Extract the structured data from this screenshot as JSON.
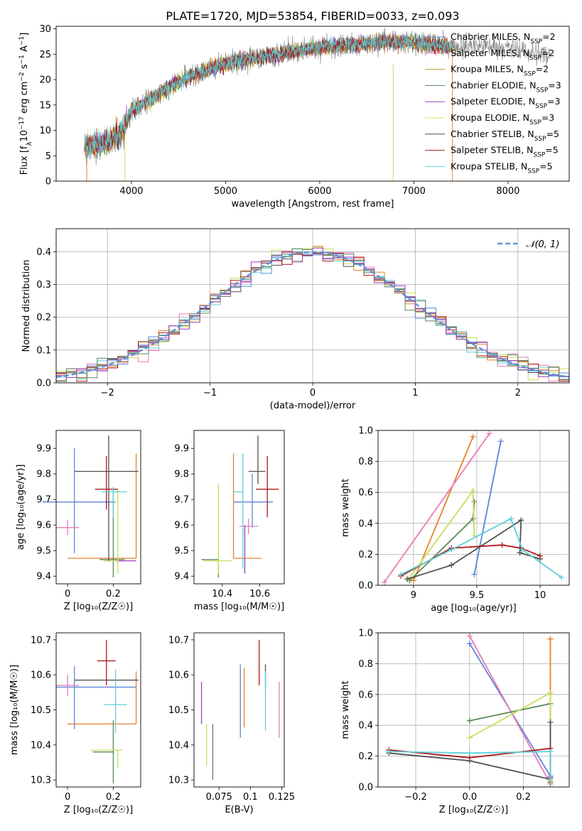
{
  "title": "PLATE=1720, MJD=53854, FIBERID=0033, z=0.093",
  "colors": {
    "series": [
      "#5b86d6",
      "#e8812a",
      "#c49a2e",
      "#5a8a5a",
      "#9a3fc0",
      "#c8dc5a",
      "#505050",
      "#b01818",
      "#5fd0d8"
    ],
    "hist": [
      "#5b86d6",
      "#e8812a",
      "#e87ab5",
      "#c8dc5a",
      "#505050",
      "#b01818",
      "#5fd0d8",
      "#5a8a5a",
      "#9a3fc0"
    ]
  },
  "chart_data": [
    {
      "id": "spectrum",
      "type": "line",
      "title": "PLATE=1720, MJD=53854, FIBERID=0033, z=0.093",
      "xlabel": "wavelength [Angstrom, rest frame]",
      "ylabel": "Flux [f_λ10^{-17} erg cm^{-2} s^{-1} A^{-1}]",
      "xlim": [
        3200,
        8650
      ],
      "ylim": [
        0,
        30.5
      ],
      "xticks": [
        4000,
        5000,
        6000,
        7000,
        8000
      ],
      "yticks": [
        0,
        5,
        10,
        15,
        20,
        25,
        30
      ],
      "legend_position": "top-right",
      "legend": [
        {
          "label": "Chabrier MILES, N",
          "sub": "SSP",
          "tail": "=2",
          "color": "#5b86d6"
        },
        {
          "label": "Salpeter MILES, N",
          "sub": "SSP",
          "tail": "=2",
          "color": "#e87ab5"
        },
        {
          "label": "Kroupa MILES, N",
          "sub": "SSP",
          "tail": "=2",
          "color": "#c49a2e"
        },
        {
          "label": "Chabrier ELODIE, N",
          "sub": "SSP",
          "tail": "=3",
          "color": "#5a8a5a"
        },
        {
          "label": "Salpeter ELODIE, N",
          "sub": "SSP",
          "tail": "=3",
          "color": "#9a3fc0"
        },
        {
          "label": "Kroupa ELODIE, N",
          "sub": "SSP",
          "tail": "=3",
          "color": "#e0e060"
        },
        {
          "label": "Chabrier STELIB, N",
          "sub": "SSP",
          "tail": "=5",
          "color": "#505050"
        },
        {
          "label": "Salpeter STELIB, N",
          "sub": "SSP",
          "tail": "=5",
          "color": "#b01818"
        },
        {
          "label": "Kroupa STELIB, N",
          "sub": "SSP",
          "tail": "=5",
          "color": "#5fd0d8"
        }
      ],
      "trend": [
        [
          3500,
          6.5
        ],
        [
          3700,
          7.5
        ],
        [
          3900,
          9.5
        ],
        [
          4000,
          14
        ],
        [
          4200,
          16
        ],
        [
          4400,
          18.5
        ],
        [
          4600,
          20.5
        ],
        [
          4800,
          22
        ],
        [
          5000,
          23
        ],
        [
          5200,
          24
        ],
        [
          5400,
          24.5
        ],
        [
          5600,
          25.2
        ],
        [
          5800,
          25.8
        ],
        [
          6000,
          26.3
        ],
        [
          6200,
          26.8
        ],
        [
          6400,
          27
        ],
        [
          6600,
          27.3
        ],
        [
          6800,
          27.5
        ],
        [
          7000,
          27.3
        ],
        [
          7200,
          27
        ],
        [
          7400,
          26.5
        ],
        [
          7600,
          26.8
        ],
        [
          7800,
          26.5
        ],
        [
          8000,
          26.2
        ],
        [
          8200,
          25.5
        ],
        [
          8400,
          25
        ]
      ]
    },
    {
      "id": "residual_hist",
      "type": "line",
      "xlabel": "(data-model)/error",
      "ylabel": "Normed distribution",
      "xlim": [
        -2.5,
        2.5
      ],
      "ylim": [
        0,
        0.47
      ],
      "xticks": [
        -2,
        -1,
        0,
        1,
        2
      ],
      "xtick_labels": [
        "−2",
        "−1",
        "0",
        "1",
        "2"
      ],
      "yticks": [
        0.0,
        0.1,
        0.2,
        0.3,
        0.4
      ],
      "legend": "𝒩(0, 1)",
      "legend_position": "top-right",
      "grid": true,
      "bin_width": 0.1
    },
    {
      "id": "age_vs_Z",
      "type": "scatter",
      "xlabel": "Z [log₁₀(Z/Z☉)]",
      "ylabel": "age  [log₁₀(age/yr)]",
      "xlim": [
        -0.05,
        0.32
      ],
      "ylim": [
        9.37,
        9.97
      ],
      "xticks": [
        0.0,
        0.2
      ],
      "yticks": [
        9.4,
        9.5,
        9.6,
        9.7,
        9.8,
        9.9
      ],
      "points": [
        {
          "x": 0.03,
          "y": 9.69,
          "xerr": [
            0.14,
            0.18
          ],
          "yerr": [
            0.2,
            0.21
          ],
          "color": "#5b86d6"
        },
        {
          "x": 0.3,
          "y": 9.47,
          "xerr": [
            0.3,
            0.0
          ],
          "yerr": [
            0.0,
            0.41
          ],
          "color": "#e8812a"
        },
        {
          "x": 0.0,
          "y": 9.59,
          "xerr": [
            0.05,
            0.05
          ],
          "yerr": [
            0.03,
            0.03
          ],
          "color": "#e87ab5"
        },
        {
          "x": 0.2,
          "y": 9.465,
          "xerr": [
            0.06,
            0.05
          ],
          "yerr": [
            0.07,
            0.27
          ],
          "color": "#5a8a5a"
        },
        {
          "x": 0.28,
          "y": 9.46,
          "xerr": [
            0.07,
            0.02
          ],
          "yerr": [
            0.0,
            0.0
          ],
          "color": "#9a3fc0"
        },
        {
          "x": 0.22,
          "y": 9.46,
          "xerr": [
            0.06,
            0.0
          ],
          "yerr": [
            0.05,
            0.28
          ],
          "color": "#c8dc5a"
        },
        {
          "x": 0.18,
          "y": 9.81,
          "xerr": [
            0.15,
            0.13
          ],
          "yerr": [
            0.35,
            0.14
          ],
          "color": "#505050"
        },
        {
          "x": 0.17,
          "y": 9.74,
          "xerr": [
            0.05,
            0.05
          ],
          "yerr": [
            0.08,
            0.13
          ],
          "color": "#b01818"
        },
        {
          "x": 0.2,
          "y": 9.73,
          "xerr": [
            0.05,
            0.06
          ],
          "yerr": [
            0.1,
            0.02
          ],
          "color": "#5fd0d8"
        }
      ]
    },
    {
      "id": "age_vs_mass",
      "type": "scatter",
      "xlabel": "mass [log₁₀(M/M☉)]",
      "ylabel": "",
      "xlim": [
        10.25,
        10.73
      ],
      "ylim": [
        9.37,
        9.97
      ],
      "xticks": [
        10.4,
        10.6
      ],
      "yticks": [
        9.4,
        9.5,
        9.6,
        9.7,
        9.8,
        9.9
      ],
      "points": [
        {
          "x": 10.56,
          "y": 9.69,
          "xerr": [
            0.1,
            0.11
          ],
          "yerr": [
            0.1,
            0.11
          ],
          "color": "#5b86d6"
        },
        {
          "x": 10.46,
          "y": 9.47,
          "xerr": [
            0.0,
            0.15
          ],
          "yerr": [
            0.0,
            0.41
          ],
          "color": "#e8812a"
        },
        {
          "x": 10.54,
          "y": 9.595,
          "xerr": [
            0.05,
            0.05
          ],
          "yerr": [
            0.03,
            0.03
          ],
          "color": "#e87ab5"
        },
        {
          "x": 10.38,
          "y": 9.465,
          "xerr": [
            0.09,
            0.0
          ],
          "yerr": [
            0.07,
            0.0
          ],
          "color": "#5a8a5a"
        },
        {
          "x": 10.52,
          "y": 9.46,
          "xerr": [
            0.0,
            0.0
          ],
          "yerr": [
            0.05,
            0.14
          ],
          "color": "#9a3fc0"
        },
        {
          "x": 10.38,
          "y": 9.46,
          "xerr": [
            0.08,
            0.07
          ],
          "yerr": [
            0.05,
            0.3
          ],
          "color": "#c8dc5a"
        },
        {
          "x": 10.59,
          "y": 9.81,
          "xerr": [
            0.05,
            0.04
          ],
          "yerr": [
            0.05,
            0.14
          ],
          "color": "#505050"
        },
        {
          "x": 10.64,
          "y": 9.74,
          "xerr": [
            0.06,
            0.06
          ],
          "yerr": [
            0.11,
            0.13
          ],
          "color": "#b01818"
        },
        {
          "x": 10.51,
          "y": 9.73,
          "xerr": [
            0.05,
            0.0
          ],
          "yerr": [
            0.3,
            0.15
          ],
          "color": "#5fd0d8"
        }
      ]
    },
    {
      "id": "massweight_vs_age",
      "type": "line",
      "xlabel": "age  [log₁₀(age/yr)]",
      "ylabel": "mass weight",
      "xlim": [
        8.72,
        10.23
      ],
      "ylim": [
        0,
        1.0
      ],
      "xticks": [
        9.0,
        9.5,
        10.0
      ],
      "yticks": [
        0.0,
        0.2,
        0.4,
        0.6,
        0.8,
        1.0
      ],
      "grid": true,
      "series": [
        {
          "color": "#5b86d6",
          "points": [
            [
              9.48,
              0.07
            ],
            [
              9.69,
              0.93
            ]
          ]
        },
        {
          "color": "#e8812a",
          "points": [
            [
              9.0,
              0.03
            ],
            [
              9.47,
              0.96
            ]
          ]
        },
        {
          "color": "#e87ab5",
          "points": [
            [
              8.77,
              0.02
            ],
            [
              9.6,
              0.98
            ]
          ]
        },
        {
          "color": "#5a8a5a",
          "points": [
            [
              8.97,
              0.03
            ],
            [
              9.47,
              0.43
            ],
            [
              9.48,
              0.54
            ]
          ]
        },
        {
          "color": "#c8dc5a",
          "points": [
            [
              8.96,
              0.04
            ],
            [
              9.47,
              0.61
            ],
            [
              9.48,
              0.32
            ]
          ]
        },
        {
          "color": "#505050",
          "points": [
            [
              8.95,
              0.04
            ],
            [
              9.3,
              0.13
            ],
            [
              9.85,
              0.42
            ],
            [
              9.84,
              0.21
            ],
            [
              10.0,
              0.17
            ]
          ]
        },
        {
          "color": "#b01818",
          "points": [
            [
              8.9,
              0.06
            ],
            [
              9.3,
              0.24
            ],
            [
              9.7,
              0.26
            ],
            [
              9.85,
              0.24
            ],
            [
              10.0,
              0.19
            ]
          ]
        },
        {
          "color": "#5fd0d8",
          "points": [
            [
              8.9,
              0.07
            ],
            [
              9.3,
              0.23
            ],
            [
              9.77,
              0.43
            ],
            [
              9.86,
              0.23
            ],
            [
              10.17,
              0.05
            ]
          ]
        }
      ]
    },
    {
      "id": "mass_vs_Z",
      "type": "scatter",
      "xlabel": "Z [log₁₀(Z/Z☉)]",
      "ylabel": "mass [log₁₀(M/M☉)]",
      "xlim": [
        -0.05,
        0.32
      ],
      "ylim": [
        10.28,
        10.72
      ],
      "xticks": [
        0.0,
        0.2
      ],
      "yticks": [
        10.3,
        10.4,
        10.5,
        10.6,
        10.7
      ],
      "points": [
        {
          "x": 0.03,
          "y": 10.565,
          "xerr": [
            0.08,
            0.27
          ],
          "yerr": [
            0.12,
            0.06
          ],
          "color": "#5b86d6"
        },
        {
          "x": 0.3,
          "y": 10.46,
          "xerr": [
            0.3,
            0.0
          ],
          "yerr": [
            0.0,
            0.15
          ],
          "color": "#e8812a"
        },
        {
          "x": 0.0,
          "y": 10.57,
          "xerr": [
            0.05,
            0.05
          ],
          "yerr": [
            0.03,
            0.03
          ],
          "color": "#e87ab5"
        },
        {
          "x": 0.2,
          "y": 10.38,
          "xerr": [
            0.09,
            0.0
          ],
          "yerr": [
            0.09,
            0.09
          ],
          "color": "#5a8a5a"
        },
        {
          "x": 0.25,
          "y": 10.515,
          "xerr": [
            0.0,
            0.0
          ],
          "yerr": [
            0.0,
            0.0
          ],
          "color": "#9a3fc0"
        },
        {
          "x": 0.22,
          "y": 10.385,
          "xerr": [
            0.12,
            0.02
          ],
          "yerr": [
            0.05,
            0.0
          ],
          "color": "#c8dc5a"
        },
        {
          "x": 0.18,
          "y": 10.585,
          "xerr": [
            0.15,
            0.13
          ],
          "yerr": [
            0.0,
            0.0
          ],
          "color": "#505050"
        },
        {
          "x": 0.17,
          "y": 10.64,
          "xerr": [
            0.04,
            0.04
          ],
          "yerr": [
            0.07,
            0.06
          ],
          "color": "#b01818"
        },
        {
          "x": 0.21,
          "y": 10.515,
          "xerr": [
            0.05,
            0.05
          ],
          "yerr": [
            0.08,
            0.1
          ],
          "color": "#5fd0d8"
        }
      ]
    },
    {
      "id": "mass_vs_ebv",
      "type": "scatter",
      "xlabel": "E(B-V)",
      "ylabel": "",
      "xlim": [
        0.055,
        0.127
      ],
      "ylim": [
        10.28,
        10.72
      ],
      "xticks": [
        0.075,
        0.1,
        0.125
      ],
      "yticks": [
        10.3,
        10.4,
        10.5,
        10.6,
        10.7
      ],
      "points": [
        {
          "x": 0.092,
          "y": 10.53,
          "yerr": [
            0.11,
            0.1
          ],
          "color": "#5b86d6"
        },
        {
          "x": 0.095,
          "y": 10.53,
          "yerr": [
            0.08,
            0.09
          ],
          "color": "#e8812a"
        },
        {
          "x": 0.123,
          "y": 10.5,
          "yerr": [
            0.08,
            0.08
          ],
          "color": "#e87ab5"
        },
        {
          "x": 0.07,
          "y": 10.38,
          "yerr": [
            0.08,
            0.08
          ],
          "color": "#5a8a5a"
        },
        {
          "x": 0.061,
          "y": 10.5,
          "yerr": [
            0.04,
            0.08
          ],
          "color": "#9a3fc0"
        },
        {
          "x": 0.065,
          "y": 10.4,
          "yerr": [
            0.06,
            0.06
          ],
          "color": "#c8dc5a"
        },
        {
          "x": 0.112,
          "y": 10.58,
          "yerr": [
            0.02,
            0.05
          ],
          "color": "#505050"
        },
        {
          "x": 0.107,
          "y": 10.64,
          "yerr": [
            0.07,
            0.06
          ],
          "color": "#b01818"
        },
        {
          "x": 0.112,
          "y": 10.51,
          "yerr": [
            0.07,
            0.1
          ],
          "color": "#5fd0d8"
        }
      ]
    },
    {
      "id": "massweight_vs_Z",
      "type": "line",
      "xlabel": "Z [log₁₀(Z/Z☉)]",
      "ylabel": "mass weight",
      "xlim": [
        -0.34,
        0.37
      ],
      "ylim": [
        0,
        1.0
      ],
      "xticks": [
        -0.2,
        0.0,
        0.2
      ],
      "xtick_labels": [
        "−0.2",
        "0.0",
        "0.2"
      ],
      "yticks": [
        0.0,
        0.2,
        0.4,
        0.6,
        0.8,
        1.0
      ],
      "grid": true,
      "series": [
        {
          "color": "#5b86d6",
          "points": [
            [
              0.0,
              0.93
            ],
            [
              0.3,
              0.07
            ]
          ]
        },
        {
          "color": "#e8812a",
          "points": [
            [
              0.3,
              0.03
            ],
            [
              0.3,
              0.96
            ]
          ]
        },
        {
          "color": "#e87ab5",
          "points": [
            [
              0.0,
              0.98
            ],
            [
              0.3,
              0.02
            ]
          ]
        },
        {
          "color": "#5a8a5a",
          "points": [
            [
              0.0,
              0.43
            ],
            [
              0.3,
              0.54
            ],
            [
              0.3,
              0.03
            ]
          ]
        },
        {
          "color": "#c8dc5a",
          "points": [
            [
              0.0,
              0.32
            ],
            [
              0.3,
              0.61
            ],
            [
              0.3,
              0.04
            ]
          ]
        },
        {
          "color": "#505050",
          "points": [
            [
              -0.3,
              0.22
            ],
            [
              0.0,
              0.17
            ],
            [
              0.3,
              0.05
            ],
            [
              0.3,
              0.42
            ]
          ]
        },
        {
          "color": "#b01818",
          "points": [
            [
              -0.3,
              0.24
            ],
            [
              0.0,
              0.19
            ],
            [
              0.3,
              0.25
            ],
            [
              0.3,
              0.06
            ]
          ]
        },
        {
          "color": "#5fd0d8",
          "points": [
            [
              -0.3,
              0.23
            ],
            [
              0.0,
              0.22
            ],
            [
              0.3,
              0.23
            ],
            [
              0.3,
              0.05
            ]
          ]
        }
      ]
    }
  ]
}
